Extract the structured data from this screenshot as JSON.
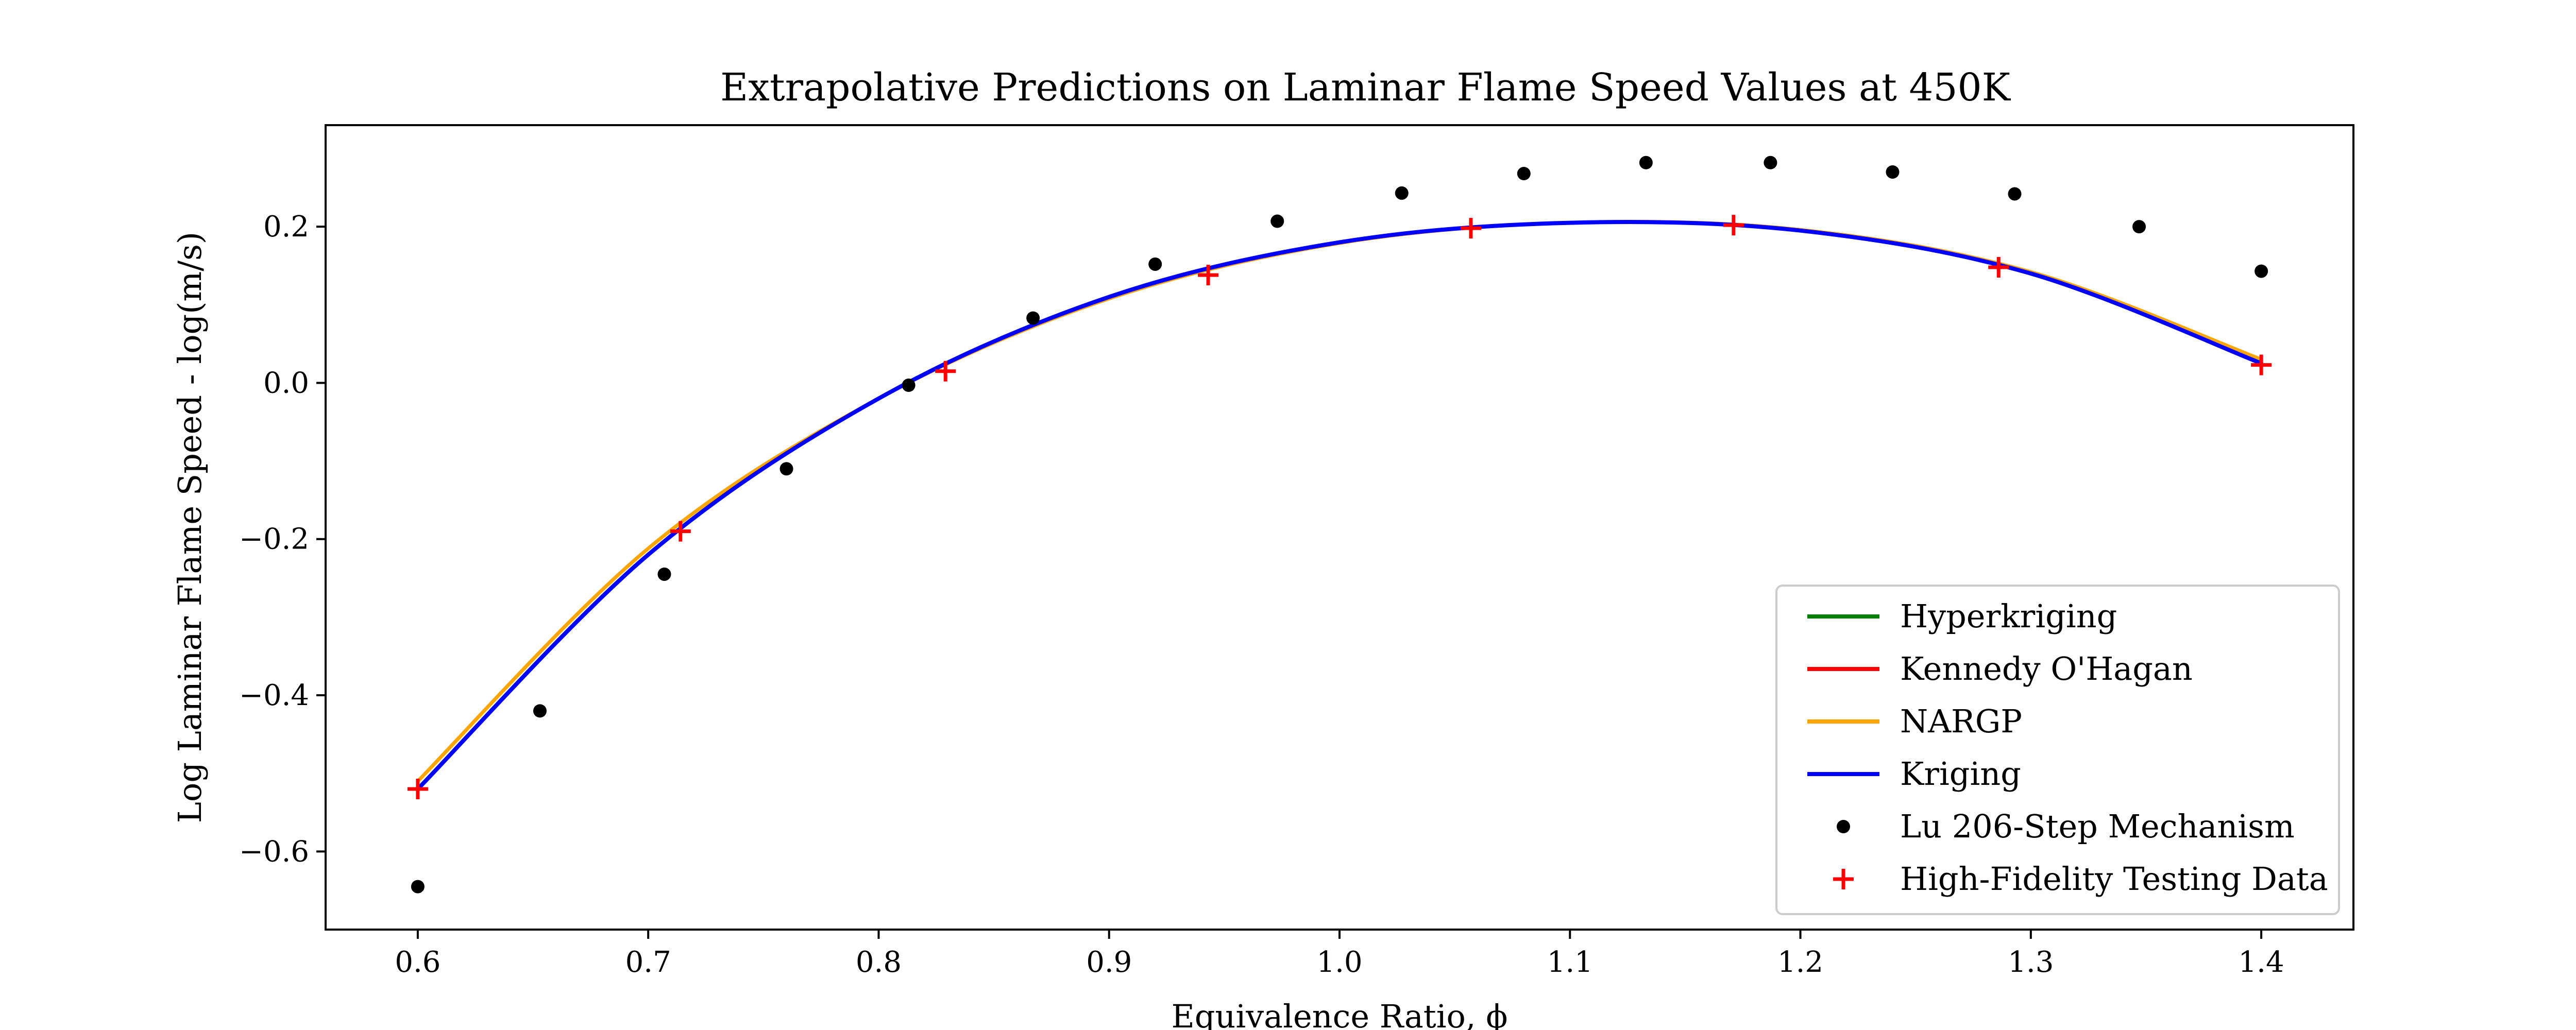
{
  "chart_data": {
    "type": "line",
    "title": "Extrapolative Predictions on Laminar Flame Speed Values at 450K",
    "xlabel": "Equivalence Ratio, ϕ",
    "ylabel": "Log Laminar Flame Speed - log(m/s)",
    "xlim": [
      0.56,
      1.44
    ],
    "ylim": [
      -0.7,
      0.33
    ],
    "x_ticks": [
      0.6,
      0.7,
      0.8,
      0.9,
      1.0,
      1.1,
      1.2,
      1.3,
      1.4
    ],
    "x_tick_labels": [
      "0.6",
      "0.7",
      "0.8",
      "0.9",
      "1.0",
      "1.1",
      "1.2",
      "1.3",
      "1.4"
    ],
    "y_ticks": [
      -0.6,
      -0.4,
      -0.2,
      0.0,
      0.2
    ],
    "y_tick_labels": [
      "−0.6",
      "−0.4",
      "−0.2",
      "0.0",
      "0.2"
    ],
    "grid": false,
    "legend_position": "bottom-right",
    "series": [
      {
        "name": "Hyperkriging",
        "kind": "line",
        "color": "#008000",
        "x": [
          0.6,
          0.7,
          0.8,
          0.9,
          1.0,
          1.1,
          1.2,
          1.3,
          1.4
        ],
        "y": [
          -0.52,
          -0.22,
          -0.02,
          0.11,
          0.18,
          0.205,
          0.195,
          0.14,
          0.025
        ]
      },
      {
        "name": "Kennedy O'Hagan",
        "kind": "line",
        "color": "#ff0000",
        "x": [
          0.6,
          0.7,
          0.8,
          0.9,
          1.0,
          1.1,
          1.2,
          1.3,
          1.4
        ],
        "y": [
          -0.52,
          -0.22,
          -0.02,
          0.11,
          0.18,
          0.205,
          0.195,
          0.14,
          0.025
        ]
      },
      {
        "name": "NARGP",
        "kind": "line",
        "color": "#ffa500",
        "x": [
          0.6,
          0.7,
          0.8,
          0.9,
          1.0,
          1.1,
          1.2,
          1.3,
          1.4
        ],
        "y": [
          -0.51,
          -0.212,
          -0.02,
          0.108,
          0.179,
          0.205,
          0.196,
          0.142,
          0.03
        ]
      },
      {
        "name": "Kriging",
        "kind": "line",
        "color": "#0000ff",
        "x": [
          0.6,
          0.7,
          0.8,
          0.9,
          1.0,
          1.1,
          1.2,
          1.3,
          1.4
        ],
        "y": [
          -0.52,
          -0.22,
          -0.02,
          0.11,
          0.18,
          0.205,
          0.195,
          0.14,
          0.025
        ]
      },
      {
        "name": "Lu 206-Step Mechanism",
        "kind": "scatter",
        "marker": "dot",
        "color": "#000000",
        "x": [
          0.6,
          0.653,
          0.707,
          0.76,
          0.813,
          0.867,
          0.92,
          0.973,
          1.027,
          1.08,
          1.133,
          1.187,
          1.24,
          1.293,
          1.347,
          1.4
        ],
        "y": [
          -0.645,
          -0.42,
          -0.245,
          -0.11,
          -0.003,
          0.083,
          0.152,
          0.207,
          0.243,
          0.268,
          0.282,
          0.282,
          0.27,
          0.242,
          0.2,
          0.143
        ]
      },
      {
        "name": "High-Fidelity Testing Data",
        "kind": "scatter",
        "marker": "plus",
        "color": "#ff0000",
        "x": [
          0.6,
          0.714,
          0.829,
          0.943,
          1.057,
          1.171,
          1.286,
          1.4
        ],
        "y": [
          -0.52,
          -0.19,
          0.015,
          0.138,
          0.198,
          0.202,
          0.148,
          0.023
        ]
      }
    ]
  }
}
